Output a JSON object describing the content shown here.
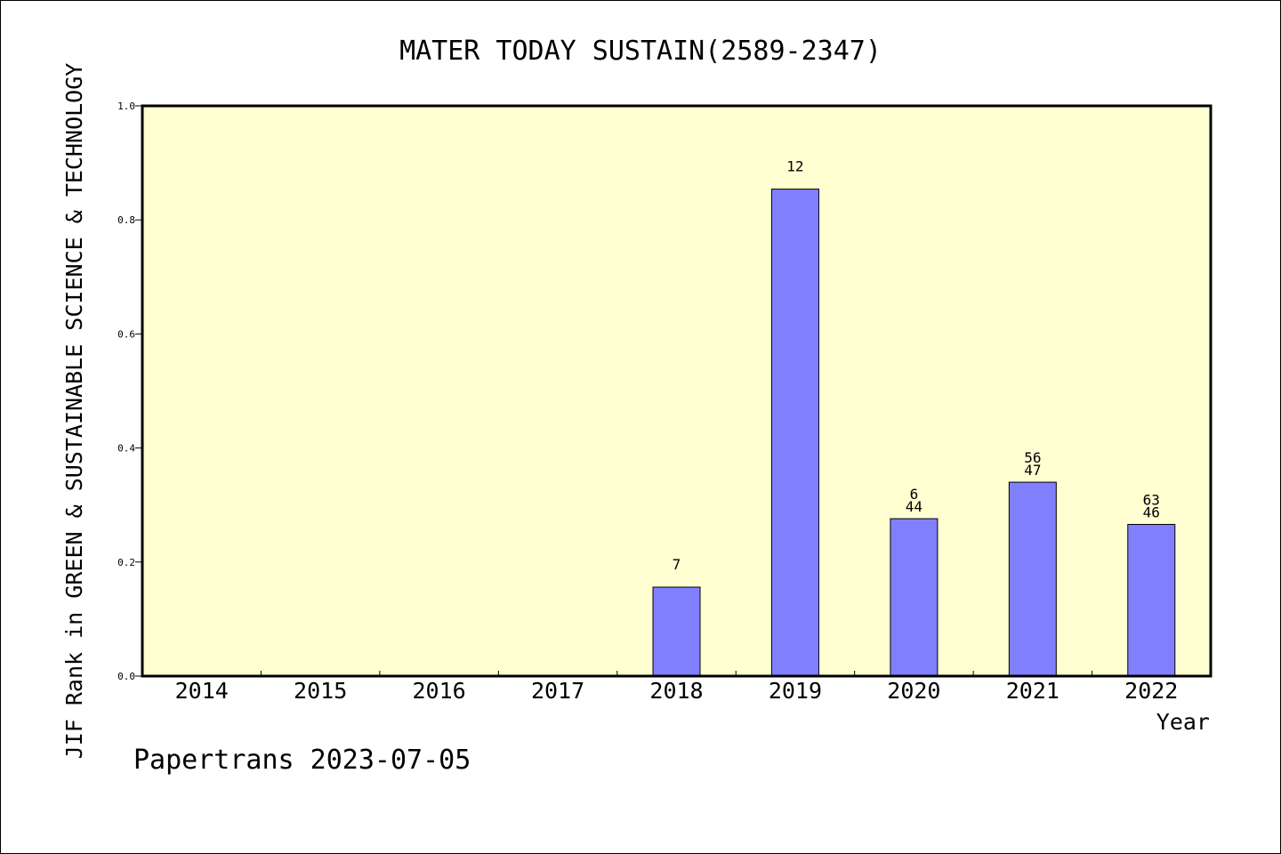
{
  "chart_data": {
    "type": "bar",
    "title": "MATER TODAY SUSTAIN(2589-2347)",
    "xlabel": "Year",
    "ylabel": "JIF Rank in GREEN & SUSTAINABLE SCIENCE & TECHNOLOGY",
    "categories": [
      "2014",
      "2015",
      "2016",
      "2017",
      "2018",
      "2019",
      "2020",
      "2021",
      "2022"
    ],
    "values": [
      null,
      null,
      null,
      null,
      0.156,
      0.854,
      0.276,
      0.34,
      0.266
    ],
    "bar_labels": [
      null,
      null,
      null,
      null,
      [
        "7"
      ],
      [
        "12"
      ],
      [
        "6",
        "44"
      ],
      [
        "56",
        "47"
      ],
      [
        "63",
        "46"
      ]
    ],
    "ylim": [
      0,
      1.0
    ],
    "yticks": [
      "0.0",
      "0.2",
      "0.4",
      "0.6",
      "0.8",
      "1.0"
    ],
    "plot_background": "#ffffd2",
    "bar_color": "#8080ff",
    "grid": false,
    "legend": "none"
  },
  "footer": {
    "text": "Papertrans 2023-07-05"
  }
}
